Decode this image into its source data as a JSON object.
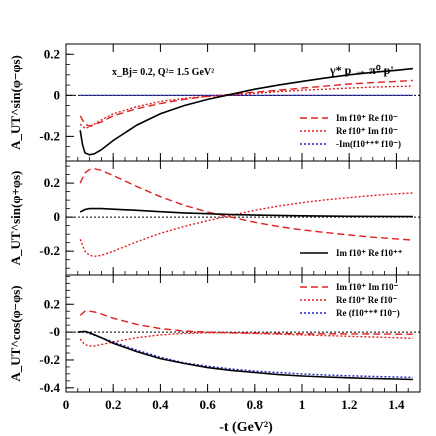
{
  "figure": {
    "annotation": "x_Bj= 0.2,  Q²= 1.5 GeV²",
    "process": "γ* p → π⁰ p'",
    "xlabel": "-t (GeV²)"
  },
  "chart_data": [
    {
      "type": "line",
      "panel": "top",
      "ylabel": "A_UT^sin(φ−φs)",
      "xlim": [
        0,
        1.5
      ],
      "ylim": [
        -0.32,
        0.25
      ],
      "yticks": [
        -0.2,
        0,
        0.2
      ],
      "ytick_labels": [
        "-0.2",
        "0",
        "0.2"
      ],
      "zero_line": true,
      "legend_position": "bottom-right",
      "series": [
        {
          "name": "Im f10⁺ Re f10⁻",
          "style": "dashed",
          "color": "#e02020",
          "x": [
            0.06,
            0.08,
            0.1,
            0.15,
            0.2,
            0.3,
            0.4,
            0.5,
            0.6,
            0.7,
            0.8,
            0.9,
            1.0,
            1.1,
            1.2,
            1.3,
            1.4,
            1.47
          ],
          "y": [
            -0.1,
            -0.14,
            -0.15,
            -0.13,
            -0.1,
            -0.065,
            -0.04,
            -0.02,
            -0.005,
            0.005,
            0.015,
            0.025,
            0.035,
            0.045,
            0.055,
            0.062,
            0.068,
            0.072
          ]
        },
        {
          "name": "Re f10⁺ Im f10⁻",
          "style": "dotted",
          "color": "#e02020",
          "x": [
            0.06,
            0.08,
            0.1,
            0.15,
            0.2,
            0.3,
            0.4,
            0.5,
            0.6,
            0.7,
            0.8,
            0.9,
            1.0,
            1.1,
            1.2,
            1.3,
            1.4,
            1.47
          ],
          "y": [
            -0.14,
            -0.16,
            -0.155,
            -0.12,
            -0.09,
            -0.055,
            -0.03,
            -0.015,
            -0.005,
            0.0,
            0.01,
            0.018,
            0.025,
            0.03,
            0.035,
            0.04,
            0.043,
            0.045
          ]
        },
        {
          "name": "-Im(f10⁺⁺* f10⁻)",
          "style": "dotted",
          "color": "#2020cc",
          "x": [
            0.06,
            0.2,
            0.4,
            0.6,
            0.8,
            1.0,
            1.2,
            1.47
          ],
          "y": [
            0.0,
            0.0,
            0.0,
            0.0,
            0.0,
            0.0,
            0.0,
            0.0
          ]
        },
        {
          "name": "",
          "style": "solid",
          "color": "#000000",
          "x": [
            0.06,
            0.07,
            0.08,
            0.1,
            0.12,
            0.15,
            0.2,
            0.3,
            0.4,
            0.5,
            0.6,
            0.7,
            0.8,
            0.9,
            1.0,
            1.1,
            1.2,
            1.3,
            1.4,
            1.47
          ],
          "y": [
            -0.17,
            -0.24,
            -0.28,
            -0.29,
            -0.285,
            -0.265,
            -0.22,
            -0.145,
            -0.09,
            -0.05,
            -0.02,
            0.005,
            0.03,
            0.05,
            0.068,
            0.085,
            0.1,
            0.112,
            0.122,
            0.13
          ]
        }
      ]
    },
    {
      "type": "line",
      "panel": "middle",
      "ylabel": "A_UT^sin(φ+φs)",
      "xlim": [
        0,
        1.5
      ],
      "ylim": [
        -0.34,
        0.33
      ],
      "yticks": [
        -0.2,
        0,
        0.2
      ],
      "ytick_labels": [
        "-0.2",
        "0",
        "0.2"
      ],
      "zero_line": true,
      "legend_position": "bottom-right",
      "series": [
        {
          "name": "",
          "style": "dashed",
          "color": "#e02020",
          "x": [
            0.06,
            0.08,
            0.1,
            0.12,
            0.15,
            0.2,
            0.3,
            0.4,
            0.5,
            0.6,
            0.7,
            0.8,
            0.9,
            1.0,
            1.1,
            1.2,
            1.3,
            1.4,
            1.47
          ],
          "y": [
            0.2,
            0.26,
            0.28,
            0.285,
            0.275,
            0.245,
            0.18,
            0.12,
            0.07,
            0.03,
            0.0,
            -0.03,
            -0.055,
            -0.075,
            -0.09,
            -0.105,
            -0.118,
            -0.128,
            -0.135
          ]
        },
        {
          "name": "",
          "style": "dotted",
          "color": "#e02020",
          "x": [
            0.06,
            0.08,
            0.1,
            0.12,
            0.15,
            0.2,
            0.3,
            0.4,
            0.5,
            0.6,
            0.7,
            0.8,
            0.9,
            1.0,
            1.1,
            1.2,
            1.3,
            1.4,
            1.47
          ],
          "y": [
            -0.13,
            -0.2,
            -0.225,
            -0.23,
            -0.225,
            -0.2,
            -0.145,
            -0.095,
            -0.055,
            -0.02,
            0.01,
            0.04,
            0.065,
            0.085,
            0.102,
            0.115,
            0.127,
            0.137,
            0.142
          ]
        },
        {
          "name": "Im f10⁺ Re f10⁺⁺",
          "style": "solid",
          "color": "#000000",
          "x": [
            0.06,
            0.08,
            0.1,
            0.15,
            0.2,
            0.3,
            0.4,
            0.5,
            0.6,
            0.7,
            0.8,
            1.0,
            1.2,
            1.47
          ],
          "y": [
            0.03,
            0.045,
            0.05,
            0.05,
            0.047,
            0.04,
            0.032,
            0.025,
            0.02,
            0.015,
            0.012,
            0.008,
            0.005,
            0.003
          ]
        }
      ]
    },
    {
      "type": "line",
      "panel": "bottom",
      "ylabel": "A_UT^cos(φ−φs)",
      "xlim": [
        0,
        1.5
      ],
      "ylim": [
        -0.43,
        0.41
      ],
      "yticks": [
        -0.4,
        -0.2,
        0,
        0.2
      ],
      "ytick_labels": [
        "-0.4",
        "-0.2",
        "-0",
        "0.2"
      ],
      "zero_line": true,
      "legend_position": "top-right",
      "series": [
        {
          "name": "Im f10⁺ Im f10⁻",
          "style": "dashed",
          "color": "#e02020",
          "x": [
            0.06,
            0.08,
            0.1,
            0.12,
            0.15,
            0.2,
            0.3,
            0.4,
            0.5,
            0.6,
            0.7,
            0.8,
            0.9,
            1.0,
            1.2,
            1.47
          ],
          "y": [
            0.12,
            0.15,
            0.15,
            0.145,
            0.13,
            0.1,
            0.055,
            0.025,
            0.008,
            0.0,
            -0.005,
            -0.008,
            -0.01,
            -0.012,
            -0.013,
            -0.015
          ]
        },
        {
          "name": "Re f10⁺ Re f10⁻",
          "style": "dotted",
          "color": "#e02020",
          "x": [
            0.06,
            0.08,
            0.1,
            0.12,
            0.15,
            0.2,
            0.3,
            0.4,
            0.5,
            0.6,
            0.7,
            0.8,
            0.9,
            1.0,
            1.1,
            1.2,
            1.3,
            1.4,
            1.47
          ],
          "y": [
            -0.05,
            -0.09,
            -0.1,
            -0.1,
            -0.09,
            -0.07,
            -0.04,
            -0.02,
            -0.01,
            -0.005,
            -0.005,
            -0.01,
            -0.015,
            -0.02,
            -0.025,
            -0.03,
            -0.035,
            -0.04,
            -0.045
          ]
        },
        {
          "name": "Re (f10⁺⁺* f10⁻)",
          "style": "dotted",
          "color": "#2020cc",
          "x": [
            0.05,
            0.08,
            0.1,
            0.15,
            0.2,
            0.3,
            0.4,
            0.5,
            0.6,
            0.7,
            0.8,
            0.9,
            1.0,
            1.1,
            1.2,
            1.3,
            1.4,
            1.47
          ],
          "y": [
            0.0,
            0.0,
            -0.01,
            -0.04,
            -0.07,
            -0.13,
            -0.18,
            -0.22,
            -0.245,
            -0.265,
            -0.28,
            -0.29,
            -0.3,
            -0.308,
            -0.314,
            -0.318,
            -0.322,
            -0.325
          ]
        },
        {
          "name": "",
          "style": "solid",
          "color": "#000000",
          "x": [
            0.05,
            0.08,
            0.1,
            0.15,
            0.2,
            0.3,
            0.4,
            0.5,
            0.6,
            0.7,
            0.8,
            0.9,
            1.0,
            1.1,
            1.2,
            1.3,
            1.4,
            1.47
          ],
          "y": [
            0.0,
            0.005,
            -0.005,
            -0.04,
            -0.08,
            -0.14,
            -0.19,
            -0.225,
            -0.255,
            -0.275,
            -0.29,
            -0.305,
            -0.315,
            -0.322,
            -0.328,
            -0.333,
            -0.337,
            -0.34
          ]
        }
      ]
    }
  ],
  "xaxis": {
    "ticks": [
      0,
      0.2,
      0.4,
      0.6,
      0.8,
      1,
      1.2,
      1.4
    ],
    "tick_labels": [
      "0",
      "0.2",
      "0.4",
      "0.6",
      "0.8",
      "1",
      "1.2",
      "1.4"
    ]
  }
}
